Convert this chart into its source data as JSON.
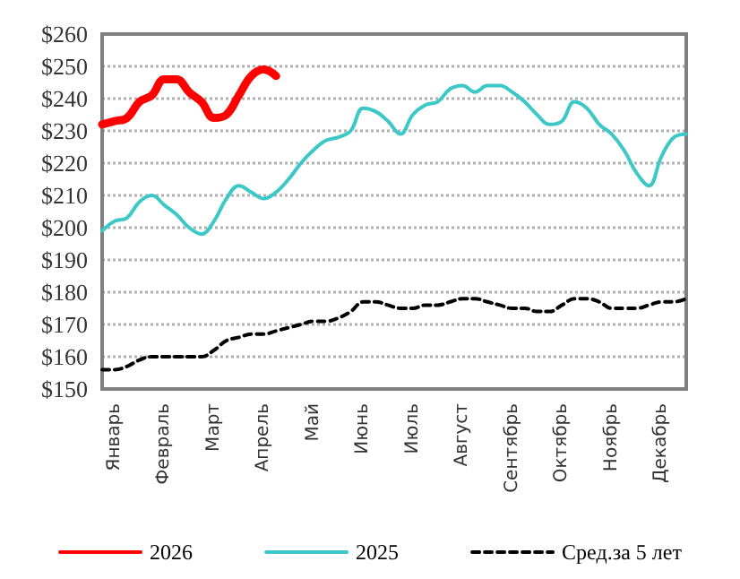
{
  "chart_data": {
    "type": "line",
    "categories": [
      null,
      "Январь",
      null,
      null,
      null,
      "Февраль",
      null,
      null,
      null,
      "Март",
      null,
      null,
      null,
      "Апрель",
      null,
      null,
      null,
      "Май",
      null,
      null,
      null,
      "Июнь",
      null,
      null,
      null,
      "Июль",
      null,
      null,
      null,
      "Август",
      null,
      null,
      null,
      "Сентябрь",
      null,
      null,
      null,
      "Октябрь",
      null,
      null,
      null,
      "Ноябрь",
      null,
      null,
      null,
      "Декабрь",
      null,
      null
    ],
    "ylim": [
      150,
      260
    ],
    "yticks": [
      {
        "value": 150,
        "label": "$150"
      },
      {
        "value": 160,
        "label": "$160"
      },
      {
        "value": 170,
        "label": "$170"
      },
      {
        "value": 180,
        "label": "$180"
      },
      {
        "value": 190,
        "label": "$190"
      },
      {
        "value": 200,
        "label": "$200"
      },
      {
        "value": 210,
        "label": "$210"
      },
      {
        "value": 220,
        "label": "$220"
      },
      {
        "value": 230,
        "label": "$230"
      },
      {
        "value": 240,
        "label": "$240"
      },
      {
        "value": 250,
        "label": "$250"
      },
      {
        "value": 260,
        "label": "$260"
      }
    ],
    "grid": "y",
    "legend": "bottom",
    "marker": "none",
    "series": [
      {
        "name": "2026",
        "color": "#ff0000",
        "line_style": "solid",
        "values": [
          232,
          233,
          234,
          239,
          241,
          246,
          246,
          242,
          239,
          234,
          235,
          241,
          247,
          249,
          247,
          null,
          null,
          null,
          null,
          null,
          null,
          null,
          null,
          null,
          null,
          null,
          null,
          null,
          null,
          null,
          null,
          null,
          null,
          null,
          null,
          null,
          null,
          null,
          null,
          null,
          null,
          null,
          null,
          null,
          null,
          null,
          null,
          null
        ]
      },
      {
        "name": "2025",
        "color": "#3cc8c8",
        "line_style": "solid",
        "values": [
          199,
          202,
          203,
          208,
          210,
          207,
          204,
          200,
          198,
          202,
          209,
          213,
          211,
          209,
          211,
          215,
          220,
          224,
          227,
          228,
          230,
          237,
          236,
          233,
          229,
          235,
          238,
          239,
          243,
          244,
          242,
          244,
          244,
          242,
          239,
          235,
          232,
          233,
          239,
          237,
          232,
          229,
          224,
          217,
          213,
          222,
          228,
          229
        ]
      },
      {
        "name": "Сред.за 5 лет",
        "color": "#000000",
        "line_style": "dashed",
        "values": [
          156,
          156,
          157,
          159,
          160,
          160,
          160,
          160,
          160,
          162,
          165,
          166,
          167,
          167,
          168,
          169,
          170,
          171,
          171,
          172,
          174,
          177,
          177,
          176,
          175,
          175,
          176,
          176,
          177,
          178,
          178,
          177,
          176,
          175,
          175,
          174,
          174,
          176,
          178,
          178,
          177,
          175,
          175,
          175,
          176,
          177,
          177,
          178
        ]
      }
    ]
  }
}
